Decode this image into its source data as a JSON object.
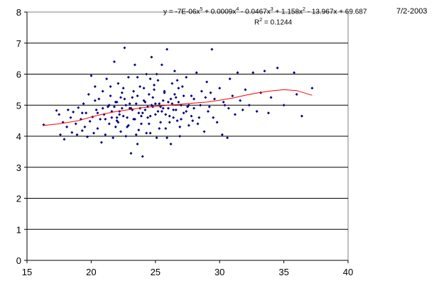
{
  "date_label": "7/2-2003",
  "chart_data": {
    "type": "scatter",
    "title": "",
    "xlabel": "",
    "ylabel": "",
    "xlim": [
      15,
      40
    ],
    "ylim": [
      0,
      8
    ],
    "x_ticks": [
      15,
      20,
      25,
      30,
      35,
      40
    ],
    "y_ticks": [
      0,
      1,
      2,
      3,
      4,
      5,
      6,
      7,
      8
    ],
    "horizontal_grid": true,
    "vertical_grid": false,
    "colors": {
      "points": "#000080",
      "trendline": "#ff0000",
      "gridlines": "#000000",
      "plot_bg": "#ffffff"
    },
    "trendline": {
      "type": "polynomial",
      "order": 5,
      "equation_parts": [
        "y = -7E-06x",
        "5",
        " + 0.0009x",
        "4",
        " - 0.0467x",
        "3",
        " + 1.158x",
        "2",
        " - 13.967x + 69.687"
      ],
      "r2_parts": [
        "R",
        "2",
        " = 0.1244"
      ],
      "x": [
        16.3,
        17.5,
        19,
        20,
        21,
        22,
        23,
        24,
        25,
        26,
        27,
        28,
        29,
        30,
        31,
        32,
        33,
        34,
        35,
        36,
        37.2
      ],
      "y": [
        4.35,
        4.4,
        4.5,
        4.62,
        4.72,
        4.8,
        4.86,
        4.92,
        4.96,
        5.0,
        5.03,
        5.07,
        5.1,
        5.16,
        5.23,
        5.32,
        5.4,
        5.46,
        5.5,
        5.47,
        5.32
      ]
    },
    "series": [
      {
        "points": [
          [
            16.3,
            4.37
          ],
          [
            17.3,
            4.83
          ],
          [
            17.5,
            4.7
          ],
          [
            17.6,
            4.05
          ],
          [
            17.8,
            4.45
          ],
          [
            17.9,
            3.9
          ],
          [
            18.1,
            4.3
          ],
          [
            18.2,
            4.85
          ],
          [
            18.4,
            4.6
          ],
          [
            18.5,
            4.12
          ],
          [
            18.6,
            4.78
          ],
          [
            18.8,
            4.4
          ],
          [
            18.9,
            4.05
          ],
          [
            19.0,
            4.92
          ],
          [
            19.2,
            4.55
          ],
          [
            19.3,
            4.18
          ],
          [
            19.4,
            5.05
          ],
          [
            19.5,
            4.3
          ],
          [
            19.6,
            4.75
          ],
          [
            19.7,
            3.98
          ],
          [
            19.8,
            5.35
          ],
          [
            19.9,
            4.48
          ],
          [
            20.0,
            5.95
          ],
          [
            20.1,
            4.62
          ],
          [
            20.2,
            4.1
          ],
          [
            20.3,
            5.6
          ],
          [
            20.4,
            4.85
          ],
          [
            20.5,
            4.25
          ],
          [
            20.6,
            5.2
          ],
          [
            20.7,
            4.55
          ],
          [
            20.8,
            3.8
          ],
          [
            20.9,
            5.45
          ],
          [
            21.0,
            4.7
          ],
          [
            21.1,
            4.05
          ],
          [
            21.2,
            5.85
          ],
          [
            21.3,
            4.95
          ],
          [
            21.4,
            4.4
          ],
          [
            21.5,
            5.3
          ],
          [
            21.6,
            4.6
          ],
          [
            21.7,
            3.95
          ],
          [
            21.8,
            6.4
          ],
          [
            21.9,
            5.1
          ],
          [
            22.0,
            4.5
          ],
          [
            22.1,
            5.7
          ],
          [
            22.2,
            4.8
          ],
          [
            22.3,
            4.15
          ],
          [
            22.4,
            5.4
          ],
          [
            22.5,
            4.65
          ],
          [
            22.6,
            6.85
          ],
          [
            22.7,
            5.0
          ],
          [
            22.8,
            4.3
          ],
          [
            22.9,
            5.9
          ],
          [
            23.0,
            4.9
          ],
          [
            23.1,
            3.45
          ],
          [
            23.2,
            5.25
          ],
          [
            23.3,
            4.55
          ],
          [
            23.4,
            6.3
          ],
          [
            23.5,
            5.05
          ],
          [
            23.6,
            3.75
          ],
          [
            23.7,
            4.75
          ],
          [
            23.8,
            5.6
          ],
          [
            23.9,
            4.4
          ],
          [
            24.0,
            3.35
          ],
          [
            24.1,
            5.15
          ],
          [
            24.2,
            4.85
          ],
          [
            24.3,
            6.0
          ],
          [
            24.4,
            4.6
          ],
          [
            24.5,
            5.35
          ],
          [
            24.6,
            4.1
          ],
          [
            24.7,
            6.55
          ],
          [
            24.8,
            4.95
          ],
          [
            24.9,
            5.5
          ],
          [
            25.0,
            4.7
          ],
          [
            25.1,
            3.95
          ],
          [
            25.2,
            5.8
          ],
          [
            25.3,
            5.05
          ],
          [
            25.4,
            4.45
          ],
          [
            25.5,
            6.3
          ],
          [
            25.6,
            4.9
          ],
          [
            25.7,
            5.4
          ],
          [
            25.8,
            4.25
          ],
          [
            25.9,
            6.8
          ],
          [
            26.0,
            5.1
          ],
          [
            26.1,
            4.65
          ],
          [
            26.2,
            3.75
          ],
          [
            26.3,
            5.7
          ],
          [
            26.4,
            4.85
          ],
          [
            26.5,
            6.1
          ],
          [
            26.6,
            5.25
          ],
          [
            26.7,
            4.5
          ],
          [
            26.8,
            5.55
          ],
          [
            26.9,
            4.0
          ],
          [
            27.0,
            5.0
          ],
          [
            27.2,
            4.75
          ],
          [
            27.4,
            5.9
          ],
          [
            27.6,
            4.35
          ],
          [
            27.8,
            5.3
          ],
          [
            28.0,
            4.9
          ],
          [
            28.2,
            6.05
          ],
          [
            28.4,
            4.6
          ],
          [
            28.6,
            5.45
          ],
          [
            28.8,
            4.15
          ],
          [
            29.0,
            5.75
          ],
          [
            29.2,
            4.95
          ],
          [
            29.4,
            6.8
          ],
          [
            29.6,
            5.2
          ],
          [
            29.8,
            4.45
          ],
          [
            30.0,
            5.55
          ],
          [
            30.2,
            4.05
          ],
          [
            30.4,
            5.0
          ],
          [
            30.6,
            3.95
          ],
          [
            30.8,
            5.85
          ],
          [
            31.0,
            5.3
          ],
          [
            31.2,
            4.7
          ],
          [
            31.4,
            6.05
          ],
          [
            31.6,
            5.15
          ],
          [
            31.8,
            4.85
          ],
          [
            32.0,
            5.5
          ],
          [
            32.3,
            5.0
          ],
          [
            32.6,
            6.05
          ],
          [
            32.9,
            4.8
          ],
          [
            33.2,
            5.4
          ],
          [
            33.5,
            6.1
          ],
          [
            33.8,
            4.75
          ],
          [
            34.0,
            5.25
          ],
          [
            34.5,
            6.2
          ],
          [
            35.0,
            5.0
          ],
          [
            35.8,
            6.05
          ],
          [
            36.0,
            5.35
          ],
          [
            36.4,
            4.65
          ],
          [
            37.2,
            5.55
          ],
          [
            21.4,
            5.0
          ],
          [
            21.6,
            4.8
          ],
          [
            21.8,
            4.95
          ],
          [
            22.0,
            5.1
          ],
          [
            22.2,
            4.7
          ],
          [
            22.4,
            4.9
          ],
          [
            22.6,
            5.2
          ],
          [
            22.8,
            4.6
          ],
          [
            23.0,
            5.05
          ],
          [
            23.2,
            4.85
          ],
          [
            23.4,
            4.55
          ],
          [
            23.6,
            5.3
          ],
          [
            23.8,
            4.9
          ],
          [
            24.0,
            4.75
          ],
          [
            24.2,
            5.1
          ],
          [
            24.4,
            4.95
          ],
          [
            24.6,
            4.65
          ],
          [
            24.8,
            5.25
          ],
          [
            25.0,
            5.05
          ],
          [
            25.2,
            4.8
          ],
          [
            25.4,
            4.95
          ],
          [
            25.6,
            5.15
          ],
          [
            25.8,
            4.7
          ],
          [
            26.0,
            4.9
          ],
          [
            26.2,
            5.2
          ],
          [
            26.4,
            4.6
          ],
          [
            26.6,
            4.85
          ],
          [
            26.8,
            5.1
          ],
          [
            27.0,
            4.55
          ],
          [
            27.2,
            5.3
          ],
          [
            27.4,
            4.8
          ],
          [
            27.6,
            5.0
          ],
          [
            27.8,
            4.65
          ],
          [
            28.0,
            5.2
          ],
          [
            22.1,
            4.45
          ],
          [
            22.9,
            4.35
          ],
          [
            23.7,
            4.2
          ],
          [
            24.5,
            4.4
          ],
          [
            25.3,
            4.25
          ],
          [
            26.1,
            4.45
          ],
          [
            26.9,
            4.3
          ],
          [
            23.3,
            5.45
          ],
          [
            24.1,
            5.55
          ],
          [
            24.9,
            5.65
          ],
          [
            25.7,
            5.45
          ],
          [
            26.5,
            5.35
          ],
          [
            22.5,
            5.55
          ],
          [
            21.9,
            4.3
          ],
          [
            20.9,
            4.9
          ],
          [
            20.5,
            4.75
          ],
          [
            28.5,
            5.0
          ],
          [
            29.1,
            4.8
          ],
          [
            28.9,
            5.25
          ],
          [
            29.5,
            4.6
          ],
          [
            30.3,
            5.1
          ],
          [
            27.1,
            5.6
          ],
          [
            24.3,
            4.1
          ],
          [
            23.5,
            4.05
          ],
          [
            25.9,
            3.95
          ],
          [
            22.7,
            4.0
          ],
          [
            21.5,
            5.6
          ],
          [
            20.3,
            5.15
          ],
          [
            19.3,
            4.75
          ],
          [
            21.1,
            4.55
          ],
          [
            25.5,
            4.8
          ],
          [
            24.7,
            5.0
          ],
          [
            23.9,
            4.65
          ],
          [
            23.1,
            4.9
          ],
          [
            22.3,
            5.25
          ],
          [
            26.3,
            5.05
          ],
          [
            27.5,
            4.95
          ],
          [
            24.6,
            5.85
          ],
          [
            25.1,
            6.0
          ],
          [
            23.6,
            5.9
          ],
          [
            26.7,
            5.8
          ],
          [
            22.0,
            4.6
          ],
          [
            27.9,
            4.5
          ],
          [
            28.3,
            4.4
          ],
          [
            29.3,
            5.4
          ],
          [
            30.7,
            4.9
          ]
        ]
      }
    ]
  }
}
